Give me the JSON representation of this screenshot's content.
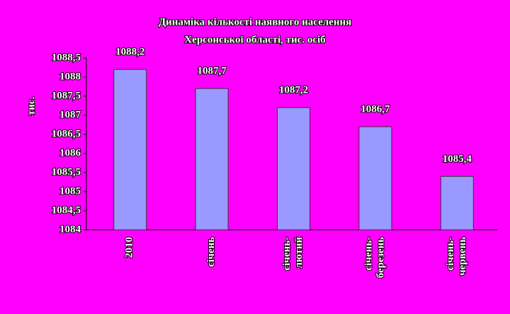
{
  "chart_data": {
    "type": "bar",
    "title": [
      "Динаміка кількості наявного населення",
      "Херсонської області, тис. осіб"
    ],
    "y_label": "тис.",
    "categories": [
      "2010",
      "січень",
      "січень-лютий",
      "січень-березень",
      "січень-червень"
    ],
    "values": [
      1088.2,
      1087.7,
      1087.2,
      1086.7,
      1085.4
    ],
    "value_labels": [
      "1088,2",
      "1087,7",
      "1087,2",
      "1086,7",
      "1085,4"
    ],
    "color": "#9999ff",
    "ylim": [
      1084,
      1088.5
    ],
    "yticks": [
      1084,
      {
        "value": 1084.5,
        "label": "1084,5"
      },
      1085,
      {
        "value": 1085.5,
        "label": "1085,5"
      },
      1086,
      {
        "value": 1086.5,
        "label": "1086,5"
      },
      1087,
      {
        "value": 1087.5,
        "label": "1087,5"
      },
      1088,
      {
        "value": 1088.5,
        "label": "1088,5"
      }
    ]
  }
}
